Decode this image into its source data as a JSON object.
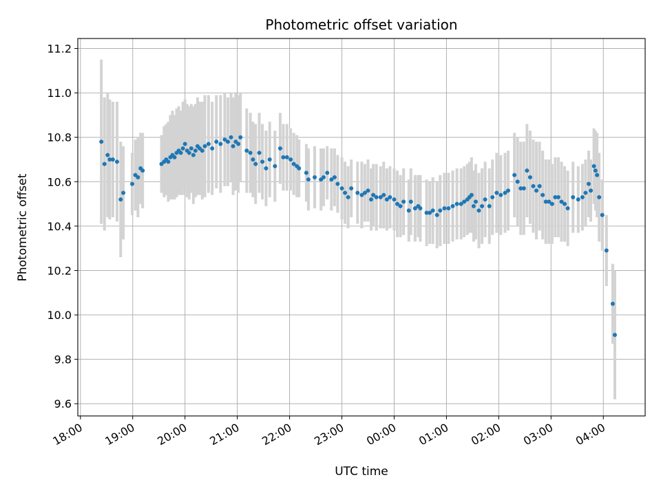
{
  "chart_data": {
    "type": "scatter",
    "title": "Photometric offset variation",
    "xlabel": "UTC time",
    "ylabel": "Photometric offset",
    "x_unit": "hours since 18:00 UTC",
    "xlim": [
      -0.05,
      10.8
    ],
    "ylim": [
      9.545,
      11.245
    ],
    "grid": true,
    "marker_color": "#1f77b4",
    "errorbar_color": "#d3d3d3",
    "x_ticks": [
      {
        "value": 0,
        "label": "18:00"
      },
      {
        "value": 1,
        "label": "19:00"
      },
      {
        "value": 2,
        "label": "20:00"
      },
      {
        "value": 3,
        "label": "21:00"
      },
      {
        "value": 4,
        "label": "22:00"
      },
      {
        "value": 5,
        "label": "23:00"
      },
      {
        "value": 6,
        "label": "00:00"
      },
      {
        "value": 7,
        "label": "01:00"
      },
      {
        "value": 8,
        "label": "02:00"
      },
      {
        "value": 9,
        "label": "03:00"
      },
      {
        "value": 10,
        "label": "04:00"
      }
    ],
    "y_ticks": [
      {
        "value": 9.6,
        "label": "9.6"
      },
      {
        "value": 9.8,
        "label": "9.8"
      },
      {
        "value": 10.0,
        "label": "10.0"
      },
      {
        "value": 10.2,
        "label": "10.2"
      },
      {
        "value": 10.4,
        "label": "10.4"
      },
      {
        "value": 10.6,
        "label": "10.6"
      },
      {
        "value": 10.8,
        "label": "10.8"
      },
      {
        "value": 11.0,
        "label": "11.0"
      },
      {
        "value": 11.2,
        "label": "11.2"
      }
    ],
    "points": [
      [
        0.4,
        10.78,
        0.37
      ],
      [
        0.46,
        10.68,
        0.3
      ],
      [
        0.52,
        10.72,
        0.28
      ],
      [
        0.56,
        10.7,
        0.27
      ],
      [
        0.62,
        10.7,
        0.26
      ],
      [
        0.7,
        10.69,
        0.27
      ],
      [
        0.77,
        10.52,
        0.26
      ],
      [
        0.82,
        10.55,
        0.21
      ],
      [
        0.99,
        10.59,
        0.14
      ],
      [
        1.05,
        10.63,
        0.16
      ],
      [
        1.1,
        10.62,
        0.18
      ],
      [
        1.15,
        10.66,
        0.16
      ],
      [
        1.19,
        10.65,
        0.17
      ],
      [
        1.55,
        10.68,
        0.13
      ],
      [
        1.6,
        10.69,
        0.16
      ],
      [
        1.64,
        10.7,
        0.16
      ],
      [
        1.68,
        10.69,
        0.18
      ],
      [
        1.72,
        10.71,
        0.19
      ],
      [
        1.76,
        10.72,
        0.2
      ],
      [
        1.8,
        10.71,
        0.19
      ],
      [
        1.84,
        10.73,
        0.2
      ],
      [
        1.88,
        10.74,
        0.2
      ],
      [
        1.92,
        10.73,
        0.19
      ],
      [
        1.96,
        10.75,
        0.21
      ],
      [
        2.0,
        10.77,
        0.2
      ],
      [
        2.04,
        10.74,
        0.21
      ],
      [
        2.08,
        10.73,
        0.21
      ],
      [
        2.12,
        10.75,
        0.2
      ],
      [
        2.16,
        10.72,
        0.22
      ],
      [
        2.2,
        10.74,
        0.21
      ],
      [
        2.24,
        10.76,
        0.22
      ],
      [
        2.28,
        10.75,
        0.21
      ],
      [
        2.33,
        10.74,
        0.22
      ],
      [
        2.38,
        10.76,
        0.23
      ],
      [
        2.45,
        10.77,
        0.22
      ],
      [
        2.52,
        10.75,
        0.21
      ],
      [
        2.6,
        10.78,
        0.21
      ],
      [
        2.68,
        10.77,
        0.22
      ],
      [
        2.76,
        10.79,
        0.21
      ],
      [
        2.82,
        10.78,
        0.2
      ],
      [
        2.88,
        10.8,
        0.2
      ],
      [
        2.92,
        10.76,
        0.22
      ],
      [
        2.97,
        10.78,
        0.22
      ],
      [
        3.02,
        10.77,
        0.22
      ],
      [
        3.06,
        10.8,
        0.2
      ],
      [
        3.18,
        10.74,
        0.19
      ],
      [
        3.25,
        10.73,
        0.18
      ],
      [
        3.3,
        10.7,
        0.17
      ],
      [
        3.35,
        10.68,
        0.18
      ],
      [
        3.42,
        10.73,
        0.18
      ],
      [
        3.48,
        10.69,
        0.17
      ],
      [
        3.55,
        10.66,
        0.17
      ],
      [
        3.62,
        10.7,
        0.17
      ],
      [
        3.72,
        10.67,
        0.16
      ],
      [
        3.82,
        10.75,
        0.16
      ],
      [
        3.88,
        10.71,
        0.15
      ],
      [
        3.95,
        10.71,
        0.15
      ],
      [
        4.02,
        10.7,
        0.14
      ],
      [
        4.08,
        10.68,
        0.14
      ],
      [
        4.14,
        10.67,
        0.14
      ],
      [
        4.18,
        10.66,
        0.13
      ],
      [
        4.32,
        10.64,
        0.13
      ],
      [
        4.36,
        10.61,
        0.14
      ],
      [
        4.48,
        10.62,
        0.14
      ],
      [
        4.6,
        10.61,
        0.14
      ],
      [
        4.65,
        10.62,
        0.13
      ],
      [
        4.72,
        10.64,
        0.12
      ],
      [
        4.8,
        10.61,
        0.14
      ],
      [
        4.86,
        10.62,
        0.13
      ],
      [
        4.92,
        10.59,
        0.13
      ],
      [
        5.0,
        10.57,
        0.14
      ],
      [
        5.06,
        10.55,
        0.14
      ],
      [
        5.12,
        10.53,
        0.14
      ],
      [
        5.18,
        10.57,
        0.13
      ],
      [
        5.3,
        10.55,
        0.14
      ],
      [
        5.38,
        10.54,
        0.15
      ],
      [
        5.44,
        10.55,
        0.13
      ],
      [
        5.5,
        10.56,
        0.14
      ],
      [
        5.56,
        10.52,
        0.14
      ],
      [
        5.6,
        10.54,
        0.14
      ],
      [
        5.66,
        10.53,
        0.15
      ],
      [
        5.74,
        10.53,
        0.14
      ],
      [
        5.8,
        10.54,
        0.15
      ],
      [
        5.86,
        10.52,
        0.14
      ],
      [
        5.92,
        10.53,
        0.14
      ],
      [
        6.0,
        10.52,
        0.14
      ],
      [
        6.06,
        10.5,
        0.15
      ],
      [
        6.12,
        10.49,
        0.14
      ],
      [
        6.18,
        10.51,
        0.15
      ],
      [
        6.28,
        10.47,
        0.14
      ],
      [
        6.32,
        10.51,
        0.15
      ],
      [
        6.4,
        10.48,
        0.15
      ],
      [
        6.46,
        10.49,
        0.14
      ],
      [
        6.5,
        10.48,
        0.15
      ],
      [
        6.62,
        10.46,
        0.15
      ],
      [
        6.68,
        10.46,
        0.14
      ],
      [
        6.74,
        10.47,
        0.15
      ],
      [
        6.82,
        10.45,
        0.15
      ],
      [
        6.88,
        10.47,
        0.16
      ],
      [
        6.96,
        10.48,
        0.16
      ],
      [
        7.04,
        10.48,
        0.16
      ],
      [
        7.12,
        10.49,
        0.16
      ],
      [
        7.2,
        10.5,
        0.16
      ],
      [
        7.28,
        10.5,
        0.16
      ],
      [
        7.34,
        10.51,
        0.16
      ],
      [
        7.4,
        10.52,
        0.16
      ],
      [
        7.44,
        10.53,
        0.16
      ],
      [
        7.48,
        10.54,
        0.17
      ],
      [
        7.52,
        10.49,
        0.16
      ],
      [
        7.56,
        10.51,
        0.17
      ],
      [
        7.62,
        10.47,
        0.17
      ],
      [
        7.68,
        10.49,
        0.17
      ],
      [
        7.74,
        10.52,
        0.17
      ],
      [
        7.82,
        10.49,
        0.17
      ],
      [
        7.88,
        10.53,
        0.17
      ],
      [
        7.96,
        10.55,
        0.18
      ],
      [
        8.04,
        10.54,
        0.18
      ],
      [
        8.12,
        10.55,
        0.18
      ],
      [
        8.18,
        10.56,
        0.18
      ],
      [
        8.3,
        10.63,
        0.19
      ],
      [
        8.36,
        10.6,
        0.2
      ],
      [
        8.42,
        10.57,
        0.21
      ],
      [
        8.48,
        10.57,
        0.21
      ],
      [
        8.54,
        10.65,
        0.21
      ],
      [
        8.6,
        10.62,
        0.21
      ],
      [
        8.66,
        10.58,
        0.21
      ],
      [
        8.72,
        10.56,
        0.22
      ],
      [
        8.78,
        10.58,
        0.2
      ],
      [
        8.84,
        10.54,
        0.2
      ],
      [
        8.9,
        10.51,
        0.19
      ],
      [
        8.96,
        10.51,
        0.19
      ],
      [
        9.02,
        10.5,
        0.18
      ],
      [
        9.08,
        10.53,
        0.18
      ],
      [
        9.14,
        10.53,
        0.18
      ],
      [
        9.2,
        10.51,
        0.18
      ],
      [
        9.26,
        10.5,
        0.17
      ],
      [
        9.32,
        10.48,
        0.17
      ],
      [
        9.42,
        10.53,
        0.16
      ],
      [
        9.52,
        10.52,
        0.15
      ],
      [
        9.6,
        10.53,
        0.15
      ],
      [
        9.66,
        10.55,
        0.15
      ],
      [
        9.72,
        10.59,
        0.15
      ],
      [
        9.76,
        10.56,
        0.14
      ],
      [
        9.82,
        10.67,
        0.17
      ],
      [
        9.85,
        10.65,
        0.18
      ],
      [
        9.88,
        10.63,
        0.19
      ],
      [
        9.92,
        10.53,
        0.2
      ],
      [
        9.98,
        10.45,
        0.16
      ],
      [
        10.06,
        10.29,
        0.16
      ],
      [
        10.18,
        10.05,
        0.18
      ],
      [
        10.22,
        9.91,
        0.29
      ]
    ]
  }
}
